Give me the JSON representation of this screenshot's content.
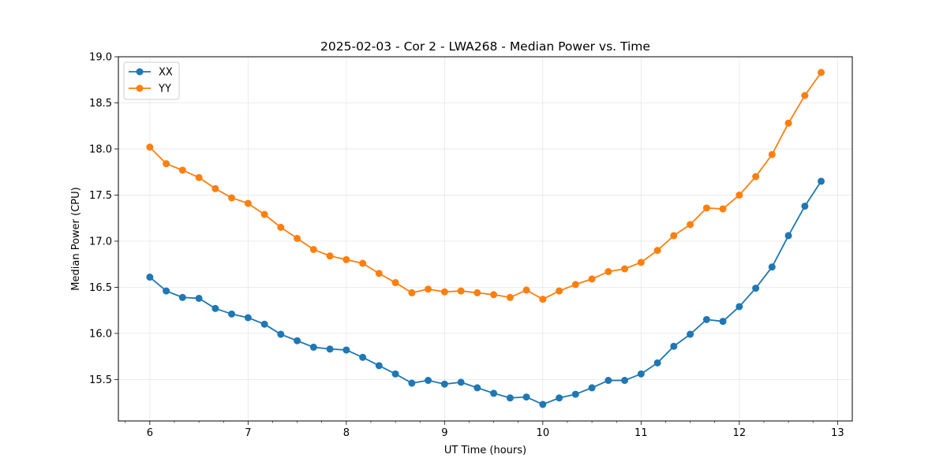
{
  "chart_data": {
    "type": "line",
    "title": "2025-02-03 - Cor 2 - LWA268 - Median Power vs. Time",
    "xlabel": "UT Time (hours)",
    "ylabel": "Median Power (CPU)",
    "xlim": [
      5.68,
      13.15
    ],
    "ylim": [
      15.05,
      19.0
    ],
    "xticks": [
      6,
      7,
      8,
      9,
      10,
      11,
      12,
      13
    ],
    "yticks": [
      15.5,
      16.0,
      16.5,
      17.0,
      17.5,
      18.0,
      18.5,
      19.0
    ],
    "xtick_labels": [
      "6",
      "7",
      "8",
      "9",
      "10",
      "11",
      "12",
      "13"
    ],
    "ytick_labels": [
      "15.5",
      "16.0",
      "16.5",
      "17.0",
      "17.5",
      "18.0",
      "18.5",
      "19.0"
    ],
    "grid": true,
    "legend_position": "top-left",
    "x": [
      6.0,
      6.167,
      6.333,
      6.5,
      6.667,
      6.833,
      7.0,
      7.167,
      7.333,
      7.5,
      7.667,
      7.833,
      8.0,
      8.167,
      8.333,
      8.5,
      8.667,
      8.833,
      9.0,
      9.167,
      9.333,
      9.5,
      9.667,
      9.833,
      10.0,
      10.167,
      10.333,
      10.5,
      10.667,
      10.833,
      11.0,
      11.167,
      11.333,
      11.5,
      11.667,
      11.833,
      12.0,
      12.167,
      12.333,
      12.5,
      12.667,
      12.833
    ],
    "series": [
      {
        "name": "XX",
        "color": "#1f77b4",
        "values": [
          16.61,
          16.46,
          16.39,
          16.38,
          16.27,
          16.21,
          16.17,
          16.1,
          15.99,
          15.92,
          15.85,
          15.83,
          15.82,
          15.74,
          15.65,
          15.56,
          15.46,
          15.49,
          15.45,
          15.47,
          15.41,
          15.35,
          15.3,
          15.31,
          15.23,
          15.3,
          15.34,
          15.41,
          15.49,
          15.49,
          15.56,
          15.68,
          15.86,
          15.99,
          16.15,
          16.13,
          16.29,
          16.49,
          16.72,
          17.06,
          17.38,
          17.65
        ]
      },
      {
        "name": "YY",
        "color": "#ff7f0e",
        "values": [
          18.02,
          17.84,
          17.77,
          17.69,
          17.57,
          17.47,
          17.41,
          17.29,
          17.15,
          17.03,
          16.91,
          16.84,
          16.8,
          16.76,
          16.65,
          16.55,
          16.44,
          16.48,
          16.45,
          16.46,
          16.44,
          16.42,
          16.39,
          16.47,
          16.37,
          16.46,
          16.53,
          16.59,
          16.67,
          16.7,
          16.77,
          16.9,
          17.06,
          17.18,
          17.36,
          17.35,
          17.5,
          17.7,
          17.94,
          18.28,
          18.58,
          18.83
        ]
      }
    ]
  }
}
